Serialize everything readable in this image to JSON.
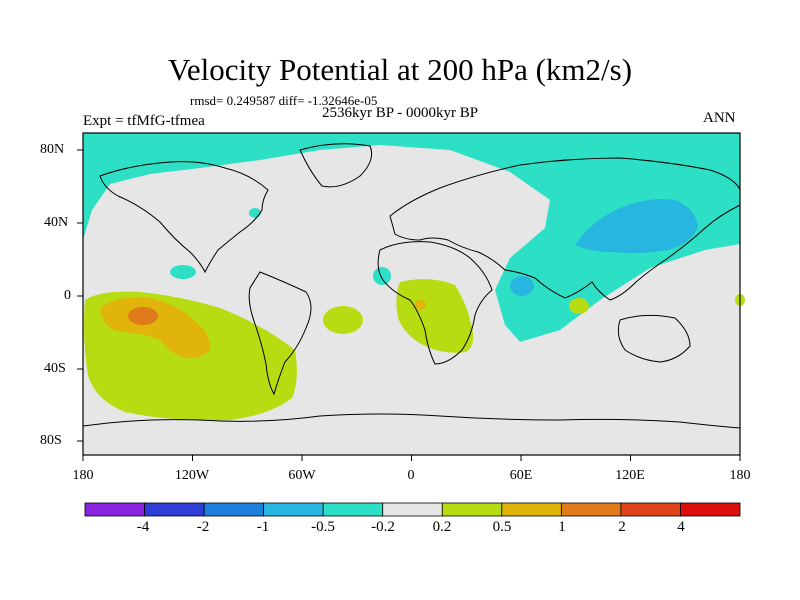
{
  "title": "Velocity Potential at 200 hPa (km2/s)",
  "stats": "rmsd= 0.249587 diff= -1.32646e-05",
  "experiment": "Expt = tfMfG-tfmea",
  "period": "2536kyr BP - 0000kyr BP",
  "season": "ANN",
  "map": {
    "background_color": "#e6e6e6",
    "x_ticks": [
      "180",
      "120W",
      "60W",
      "0",
      "60E",
      "120E",
      "180"
    ],
    "y_ticks": [
      "80N",
      "40N",
      "0",
      "40S",
      "80S"
    ]
  },
  "colorbar": {
    "colors": [
      "#8a24e0",
      "#2f3ed6",
      "#1d7fdc",
      "#27b6e0",
      "#2de0c5",
      "#e6e6e6",
      "#b8dc12",
      "#e0b40a",
      "#e07a1a",
      "#e0421a",
      "#dc0f0f"
    ],
    "labels": [
      "-4",
      "-2",
      "-1",
      "-0.5",
      "-0.2",
      "0.2",
      "0.5",
      "1",
      "2",
      "4"
    ]
  }
}
